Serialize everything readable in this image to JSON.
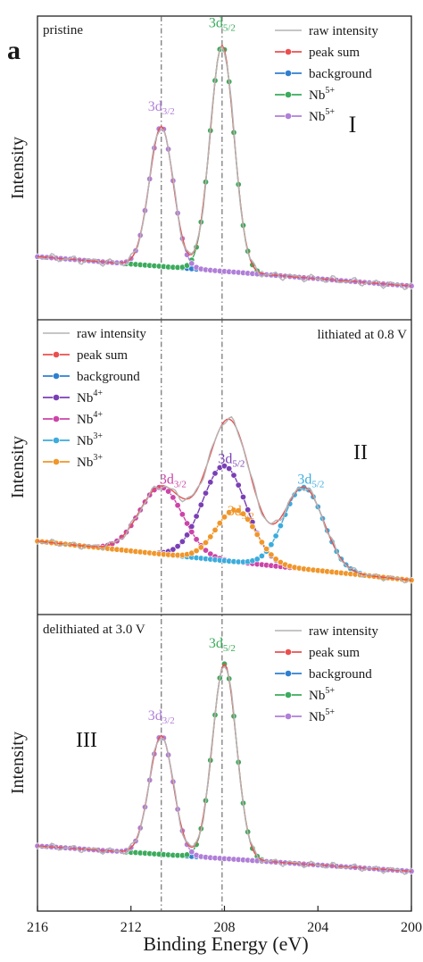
{
  "figure": {
    "panel_letter": "a",
    "x_axis_label": "Binding Energy (eV)",
    "y_axis_label": "Intensity",
    "x_ticks": [
      "216",
      "212",
      "208",
      "204",
      "200"
    ],
    "guide_lines_ev": [
      210.7,
      208.1
    ]
  },
  "colors": {
    "raw": "#b4b4b4",
    "peak_sum": "#e8504f",
    "background": "#2f7fd0",
    "nb5_a": "#3bab5c",
    "nb5_b": "#b07fd8",
    "nb4_a": "#7a3fb5",
    "nb4_b": "#cc44a8",
    "nb3_a": "#3cacdc",
    "nb3_b": "#f0962a",
    "axis": "#222222",
    "guide": "#555555"
  },
  "chart_data": [
    {
      "type": "line",
      "panel_label": "I",
      "title": "pristine",
      "xlabel": "Binding Energy (eV)",
      "ylabel": "Intensity",
      "xlim": [
        216,
        200
      ],
      "x_reversed": true,
      "ylim": [
        0,
        1.05
      ],
      "legend_position": "top-right",
      "legend": [
        {
          "text": "raw intensity",
          "sup": "",
          "series": "raw"
        },
        {
          "text": "peak sum",
          "sup": "",
          "series": "peak_sum"
        },
        {
          "text": "background",
          "sup": "",
          "series": "background"
        },
        {
          "text": "Nb",
          "sup": "5+",
          "series": "nb5_a"
        },
        {
          "text": "Nb",
          "sup": "5+",
          "series": "nb5_b"
        }
      ],
      "annotations": [
        {
          "main": "3d",
          "sub": "5/2",
          "x": 208.1,
          "y": 1.05,
          "color_key": "nb5_a"
        },
        {
          "main": "3d",
          "sub": "3/2",
          "x": 210.7,
          "y": 0.68,
          "color_key": "nb5_b"
        }
      ],
      "series": [
        {
          "key": "raw",
          "name": "raw intensity"
        },
        {
          "key": "peak_sum",
          "name": "peak sum"
        },
        {
          "key": "background",
          "name": "background",
          "start": 0.05,
          "end": -0.08
        },
        {
          "key": "nb5_a",
          "name": "Nb5+",
          "center": 208.1,
          "height": 1.0,
          "fwhm": 1.2
        },
        {
          "key": "nb5_b",
          "name": "Nb5+",
          "center": 210.7,
          "height": 0.62,
          "fwhm": 1.2
        }
      ]
    },
    {
      "type": "line",
      "panel_label": "II",
      "title": "lithiated at 0.8 V",
      "xlabel": "Binding Energy (eV)",
      "ylabel": "Intensity",
      "xlim": [
        216,
        200
      ],
      "x_reversed": true,
      "ylim": [
        0,
        1.05
      ],
      "legend_position": "top-left",
      "legend": [
        {
          "text": "raw intensity",
          "sup": "",
          "series": "raw"
        },
        {
          "text": "peak sum",
          "sup": "",
          "series": "peak_sum"
        },
        {
          "text": "background",
          "sup": "",
          "series": "background"
        },
        {
          "text": "Nb",
          "sup": "4+",
          "series": "nb4_a"
        },
        {
          "text": "Nb",
          "sup": "4+",
          "series": "nb4_b"
        },
        {
          "text": "Nb",
          "sup": "3+",
          "series": "nb3_a"
        },
        {
          "text": "Nb",
          "sup": "3+",
          "series": "nb3_b"
        }
      ],
      "annotations": [
        {
          "main": "3d",
          "sub": "3/2",
          "x": 210.2,
          "y": 0.3,
          "color_key": "nb4_b"
        },
        {
          "main": "3d",
          "sub": "5/2",
          "x": 207.7,
          "y": 0.41,
          "color_key": "nb4_a"
        },
        {
          "main": "3d",
          "sub": "3/2",
          "x": 207.3,
          "y": 0.13,
          "color_key": "nb3_b"
        },
        {
          "main": "3d",
          "sub": "5/2",
          "x": 204.3,
          "y": 0.3,
          "color_key": "nb3_a"
        }
      ],
      "series": [
        {
          "key": "raw",
          "name": "raw intensity"
        },
        {
          "key": "peak_sum",
          "name": "peak sum"
        },
        {
          "key": "background",
          "name": "background",
          "start": 0.01,
          "end": -0.2
        },
        {
          "key": "nb4_a",
          "name": "Nb4+",
          "center": 208.0,
          "height": 0.51,
          "fwhm": 2.2
        },
        {
          "key": "nb4_b",
          "name": "Nb4+",
          "center": 210.7,
          "height": 0.36,
          "fwhm": 2.2
        },
        {
          "key": "nb3_a",
          "name": "Nb3+",
          "center": 204.6,
          "height": 0.44,
          "fwhm": 2.0
        },
        {
          "key": "nb3_b",
          "name": "Nb3+",
          "center": 207.5,
          "height": 0.28,
          "fwhm": 2.0
        }
      ]
    },
    {
      "type": "line",
      "panel_label": "III",
      "title": "delithiated at 3.0 V",
      "xlabel": "Binding Energy (eV)",
      "ylabel": "Intensity",
      "xlim": [
        216,
        200
      ],
      "x_reversed": true,
      "ylim": [
        0,
        1.05
      ],
      "legend_position": "top-right",
      "legend": [
        {
          "text": "raw intensity",
          "sup": "",
          "series": "raw"
        },
        {
          "text": "peak sum",
          "sup": "",
          "series": "peak_sum"
        },
        {
          "text": "background",
          "sup": "",
          "series": "background"
        },
        {
          "text": "Nb",
          "sup": "5+",
          "series": "nb5_a"
        },
        {
          "text": "Nb",
          "sup": "5+",
          "series": "nb5_b"
        }
      ],
      "annotations": [
        {
          "main": "3d",
          "sub": "5/2",
          "x": 208.1,
          "y": 1.05,
          "color_key": "nb5_a"
        },
        {
          "main": "3d",
          "sub": "3/2",
          "x": 210.7,
          "y": 0.68,
          "color_key": "nb5_b"
        }
      ],
      "series": [
        {
          "key": "raw",
          "name": "raw intensity"
        },
        {
          "key": "peak_sum",
          "name": "peak sum"
        },
        {
          "key": "background",
          "name": "background",
          "start": 0.05,
          "end": -0.08
        },
        {
          "key": "nb5_a",
          "name": "Nb5+",
          "center": 208.0,
          "height": 1.0,
          "fwhm": 1.2
        },
        {
          "key": "nb5_b",
          "name": "Nb5+",
          "center": 210.7,
          "height": 0.61,
          "fwhm": 1.2
        }
      ]
    }
  ]
}
